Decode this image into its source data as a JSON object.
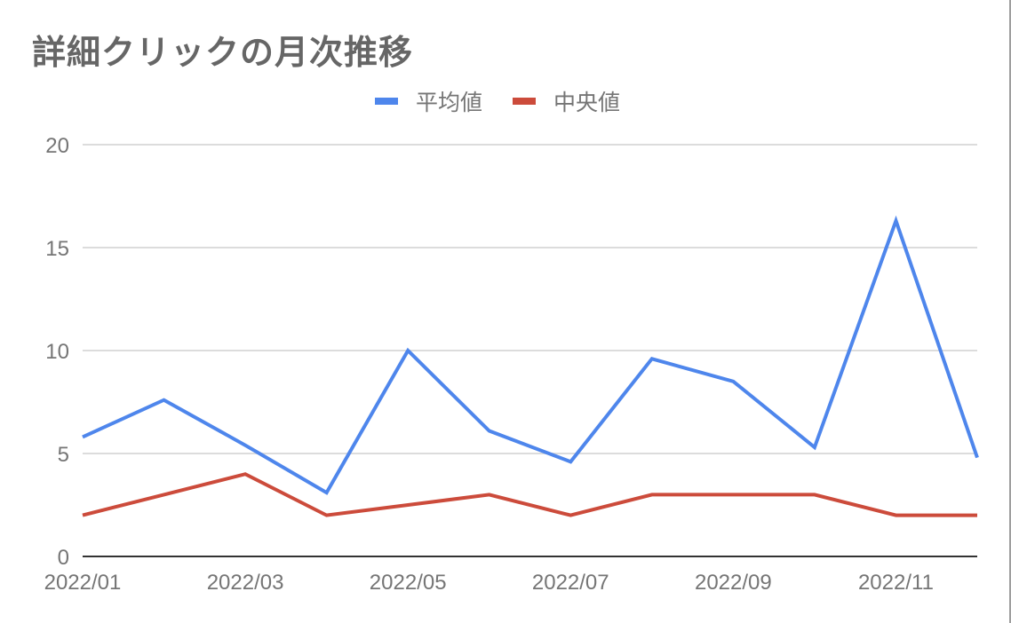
{
  "chart_data": {
    "type": "line",
    "title": "詳細クリックの月次推移",
    "xlabel": "",
    "ylabel": "",
    "ylim": [
      0,
      20
    ],
    "yticks": [
      0,
      5,
      10,
      15,
      20
    ],
    "grid": true,
    "legend_position": "top",
    "x": [
      "2022/01",
      "2022/02",
      "2022/03",
      "2022/04",
      "2022/05",
      "2022/06",
      "2022/07",
      "2022/08",
      "2022/09",
      "2022/10",
      "2022/11",
      "2022/12"
    ],
    "xtick_labels": [
      "2022/01",
      "2022/03",
      "2022/05",
      "2022/07",
      "2022/09",
      "2022/11"
    ],
    "series": [
      {
        "name": "平均値",
        "color": "#4e86ec",
        "values": [
          5.8,
          7.6,
          5.4,
          3.1,
          10.0,
          6.1,
          4.6,
          9.6,
          8.5,
          5.3,
          16.3,
          4.8
        ]
      },
      {
        "name": "中央値",
        "color": "#cc4b3b",
        "values": [
          2,
          3,
          4,
          2,
          2.5,
          3,
          2,
          3,
          3,
          3,
          2,
          2
        ]
      }
    ]
  },
  "header": {
    "title": "詳細クリックの月次推移"
  },
  "legend": {
    "items": [
      {
        "label": "平均値",
        "color": "#4e86ec"
      },
      {
        "label": "中央値",
        "color": "#cc4b3b"
      }
    ]
  }
}
